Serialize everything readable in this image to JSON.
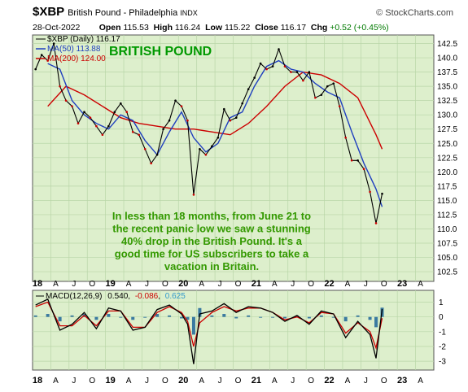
{
  "header": {
    "symbol": "$XBP",
    "name": "British Pound - Philadelphia",
    "index_tag": "INDX",
    "date": "28-Oct-2022",
    "open_label": "Open",
    "open": "115.53",
    "high_label": "High",
    "high": "116.24",
    "low_label": "Low",
    "low": "115.22",
    "close_label": "Close",
    "close": "116.17",
    "chg_label": "Chg",
    "chg": "+0.52 (+0.45%)",
    "logo": "© StockCharts.com"
  },
  "chart_data": [
    {
      "type": "line",
      "panel": "price",
      "legend": {
        "series_label": "$XBP (Daily) 116.17",
        "ma50_label": "MA(50) 113.88",
        "ma200_label": "MA(200) 124.00"
      },
      "title_overlay": "BRITISH POUND",
      "annotation": "In less than 18 months, from June 21 to the recent panic low we saw a stunning 40% drop in the British Pound. It's a good time for US subscribers to take a vacation in Britain.",
      "x_tick_labels": [
        "18",
        "A",
        "J",
        "O",
        "19",
        "A",
        "J",
        "O",
        "20",
        "A",
        "J",
        "O",
        "21",
        "A",
        "J",
        "O",
        "22",
        "A",
        "J",
        "O",
        "23",
        "A"
      ],
      "y_ticks": [
        102.5,
        105.0,
        107.5,
        110.0,
        112.5,
        115.0,
        117.5,
        120.0,
        122.5,
        125.0,
        127.5,
        130.0,
        132.5,
        135.0,
        137.5,
        140.0,
        142.5
      ],
      "ylim": [
        100.8,
        144.0
      ],
      "x_range": [
        "2018-01",
        "2023-06"
      ],
      "grid": true,
      "colors": {
        "price": "#000000",
        "down": "#cc0000",
        "ma50": "#1f3fbf",
        "ma200": "#cc0000",
        "bg": "#ddefcc",
        "title": "#009900",
        "annotation": "#339900"
      },
      "series": [
        {
          "name": "$XBP",
          "x": [
            "2018-01",
            "2018-02",
            "2018-03",
            "2018-04",
            "2018-05",
            "2018-06",
            "2018-07",
            "2018-08",
            "2018-09",
            "2018-10",
            "2018-11",
            "2018-12",
            "2019-01",
            "2019-02",
            "2019-03",
            "2019-04",
            "2019-05",
            "2019-06",
            "2019-07",
            "2019-08",
            "2019-09",
            "2019-10",
            "2019-11",
            "2019-12",
            "2020-01",
            "2020-02",
            "2020-03",
            "2020-04",
            "2020-05",
            "2020-06",
            "2020-07",
            "2020-08",
            "2020-09",
            "2020-10",
            "2020-11",
            "2020-12",
            "2021-01",
            "2021-02",
            "2021-03",
            "2021-04",
            "2021-05",
            "2021-06",
            "2021-07",
            "2021-08",
            "2021-09",
            "2021-10",
            "2021-11",
            "2021-12",
            "2022-01",
            "2022-02",
            "2022-03",
            "2022-04",
            "2022-05",
            "2022-06",
            "2022-07",
            "2022-08",
            "2022-09",
            "2022-10"
          ],
          "values": [
            138.0,
            140.5,
            139.5,
            142.5,
            135.0,
            132.5,
            131.5,
            128.5,
            130.5,
            129.5,
            128.0,
            126.5,
            128.0,
            130.5,
            132.0,
            130.5,
            127.0,
            126.5,
            124.0,
            121.5,
            123.0,
            127.5,
            129.0,
            132.5,
            131.5,
            129.0,
            116.0,
            124.0,
            123.0,
            124.5,
            126.0,
            131.0,
            129.0,
            129.5,
            132.0,
            134.5,
            136.5,
            139.0,
            138.0,
            138.5,
            141.5,
            138.5,
            137.5,
            137.5,
            136.0,
            137.5,
            133.0,
            133.5,
            135.0,
            135.5,
            131.5,
            126.0,
            122.0,
            122.0,
            120.5,
            116.5,
            111.0,
            116.17
          ]
        },
        {
          "name": "MA(50)",
          "x": [
            "2018-03",
            "2018-05",
            "2018-07",
            "2018-09",
            "2018-11",
            "2019-01",
            "2019-03",
            "2019-05",
            "2019-07",
            "2019-09",
            "2019-11",
            "2020-01",
            "2020-03",
            "2020-05",
            "2020-07",
            "2020-09",
            "2020-11",
            "2021-01",
            "2021-03",
            "2021-05",
            "2021-07",
            "2021-09",
            "2021-11",
            "2022-01",
            "2022-03",
            "2022-05",
            "2022-07",
            "2022-09",
            "2022-10"
          ],
          "values": [
            139.0,
            138.0,
            132.5,
            130.0,
            128.5,
            127.5,
            130.0,
            129.0,
            125.5,
            123.0,
            127.0,
            130.5,
            126.0,
            123.5,
            125.0,
            129.5,
            130.5,
            135.0,
            138.5,
            139.5,
            138.0,
            137.5,
            135.5,
            134.0,
            133.0,
            127.0,
            121.5,
            117.0,
            113.88
          ]
        },
        {
          "name": "MA(200)",
          "x": [
            "2018-03",
            "2018-06",
            "2018-09",
            "2018-12",
            "2019-03",
            "2019-06",
            "2019-09",
            "2019-12",
            "2020-03",
            "2020-06",
            "2020-09",
            "2020-12",
            "2021-03",
            "2021-06",
            "2021-09",
            "2021-12",
            "2022-03",
            "2022-06",
            "2022-09",
            "2022-10"
          ],
          "values": [
            131.5,
            135.0,
            133.5,
            131.5,
            129.5,
            128.5,
            128.0,
            127.5,
            127.5,
            127.0,
            126.5,
            128.5,
            131.5,
            135.0,
            137.5,
            137.0,
            135.5,
            133.0,
            126.5,
            124.0
          ]
        }
      ]
    },
    {
      "type": "line",
      "panel": "macd",
      "legend": {
        "title": "MACD(12,26,9)",
        "macd_value": "0.540",
        "signal_value": "-0.086",
        "hist_value": "0.625"
      },
      "x_tick_labels": [
        "18",
        "A",
        "J",
        "O",
        "19",
        "A",
        "J",
        "O",
        "20",
        "A",
        "J",
        "O",
        "21",
        "A",
        "J",
        "O",
        "22",
        "A",
        "J",
        "O",
        "23",
        "A"
      ],
      "y_ticks": [
        1,
        0,
        -1,
        -2,
        -3
      ],
      "ylim": [
        -3.6,
        1.8
      ],
      "grid": true,
      "colors": {
        "macd": "#000000",
        "signal": "#cc0000",
        "histogram": "#3a7aa0",
        "bg": "#ddefcc",
        "value_neg": "#cc0000",
        "value_hist": "#3399cc"
      },
      "series": [
        {
          "name": "MACD",
          "x": [
            "2018-01",
            "2018-03",
            "2018-05",
            "2018-07",
            "2018-09",
            "2018-11",
            "2019-01",
            "2019-03",
            "2019-05",
            "2019-07",
            "2019-09",
            "2019-11",
            "2020-01",
            "2020-02",
            "2020-03",
            "2020-04",
            "2020-06",
            "2020-08",
            "2020-10",
            "2020-12",
            "2021-02",
            "2021-04",
            "2021-06",
            "2021-08",
            "2021-10",
            "2021-12",
            "2022-02",
            "2022-04",
            "2022-06",
            "2022-08",
            "2022-09",
            "2022-10"
          ],
          "values": [
            0.8,
            1.2,
            -0.9,
            -0.5,
            0.3,
            -0.8,
            0.6,
            0.4,
            -0.9,
            -0.7,
            0.5,
            0.8,
            0.2,
            -0.5,
            -3.2,
            0.2,
            0.4,
            0.9,
            0.3,
            0.7,
            0.6,
            0.3,
            -0.3,
            0.1,
            -0.5,
            0.4,
            0.2,
            -1.4,
            -0.3,
            -1.2,
            -2.8,
            0.54
          ]
        },
        {
          "name": "Signal",
          "x": [
            "2018-01",
            "2018-03",
            "2018-05",
            "2018-07",
            "2018-09",
            "2018-11",
            "2019-01",
            "2019-03",
            "2019-05",
            "2019-07",
            "2019-09",
            "2019-11",
            "2020-01",
            "2020-02",
            "2020-03",
            "2020-04",
            "2020-06",
            "2020-08",
            "2020-10",
            "2020-12",
            "2021-02",
            "2021-04",
            "2021-06",
            "2021-08",
            "2021-10",
            "2021-12",
            "2022-02",
            "2022-04",
            "2022-06",
            "2022-08",
            "2022-09",
            "2022-10"
          ],
          "values": [
            0.7,
            1.0,
            -0.6,
            -0.6,
            0.1,
            -0.6,
            0.4,
            0.4,
            -0.7,
            -0.7,
            0.3,
            0.7,
            0.3,
            -0.3,
            -2.0,
            -0.4,
            0.3,
            0.7,
            0.4,
            0.6,
            0.6,
            0.3,
            -0.2,
            0.0,
            -0.4,
            0.3,
            0.2,
            -1.1,
            -0.4,
            -1.0,
            -2.1,
            -0.086
          ]
        }
      ]
    }
  ]
}
